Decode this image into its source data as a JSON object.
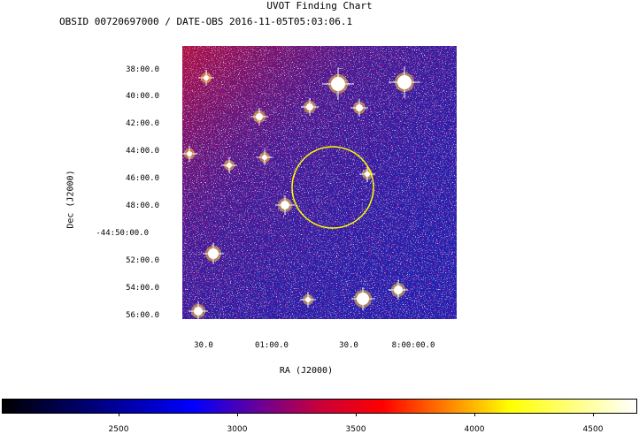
{
  "chart": {
    "title": "UVOT Finding Chart",
    "subtitle": "OBSID 00720697000 / DATE-OBS 2016-11-05T05:03:06.1",
    "ylabel": "Dec (J2000)",
    "xlabel": "RA (J2000)",
    "yticks": [
      "38:00.0",
      "40:00.0",
      "42:00.0",
      "44:00.0",
      "46:00.0",
      "48:00.0",
      "-44:50:00.0",
      "52:00.0",
      "54:00.0",
      "56:00.0"
    ],
    "xticks": [
      "30.0",
      "01:00.0",
      "30.0",
      "8:00:00.0"
    ],
    "colorbar_ticks": [
      "2500",
      "3000",
      "3500",
      "4000",
      "4500"
    ]
  },
  "chart_data": {
    "type": "heatmap",
    "title": "UVOT Finding Chart",
    "subtitle": "OBSID 00720697000 / DATE-OBS 2016-11-05T05:03:06.1",
    "xlabel": "RA (J2000)",
    "ylabel": "Dec (J2000)",
    "x_tick_labels": [
      "30.0",
      "01:00.0",
      "30.0",
      "8:00:00.0"
    ],
    "y_tick_labels": [
      "38:00.0",
      "40:00.0",
      "42:00.0",
      "44:00.0",
      "46:00.0",
      "48:00.0",
      "-44:50:00.0",
      "52:00.0",
      "54:00.0",
      "56:00.0"
    ],
    "colorbar": {
      "ticks": [
        2500,
        3000,
        3500,
        4000,
        4500
      ],
      "colormap": "black-blue-red-yellow-white"
    },
    "colors": {
      "background_blue": "#1a1aa8",
      "circle": "#ffff00"
    }
  }
}
